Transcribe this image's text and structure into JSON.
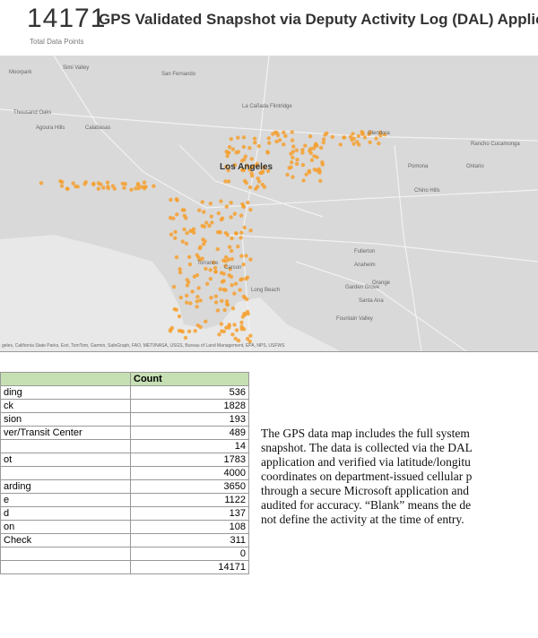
{
  "header": {
    "total": "14171",
    "title": "GPS Validated Snapshot via Deputy Activity Log (DAL) Applic",
    "subtitle": "Total Data Points"
  },
  "map": {
    "labels": [
      "Moorpark",
      "Simi Valley",
      "San Fernando",
      "Thousand Oaks",
      "Agoura Hills",
      "Calabasas",
      "La Cañada Flintridge",
      "Glendora",
      "Los Angeles",
      "Pomona",
      "Ontario",
      "Chino Hills",
      "Torrance",
      "Carson",
      "Long Beach",
      "Anaheim",
      "Fullerton",
      "Orange",
      "Garden Grove",
      "Santa Ana",
      "Rancho Cucamonga",
      "Fountain Valley"
    ],
    "attribution": "geles, California State Parks, Esri, TomTom, Garmin, SafeGraph, FAO, METI/NASA, USGS, Bureau of Land Management, EPA, NPS, USFWS"
  },
  "table": {
    "header": "Count",
    "rows": [
      {
        "label": "ding",
        "count": "536"
      },
      {
        "label": "ck",
        "count": "1828"
      },
      {
        "label": "sion",
        "count": "193"
      },
      {
        "label": "ver/Transit Center",
        "count": "489"
      },
      {
        "count": "14"
      },
      {
        "label": "ot",
        "count": "1783"
      },
      {
        "count": "4000"
      },
      {
        "label": "arding",
        "count": "3650"
      },
      {
        "label": "e",
        "count": "1122"
      },
      {
        "label": "d",
        "count": "137"
      },
      {
        "label": "on",
        "count": "108"
      },
      {
        "label": "Check",
        "count": "311"
      },
      {
        "count": "0"
      },
      {
        "count": "14171"
      }
    ]
  },
  "note": {
    "lines": [
      "The GPS data map includes the full system",
      "snapshot. The data is collected via the DAL",
      "application and verified via latitude/longitu",
      "coordinates on department-issued cellular p",
      "through a secure Microsoft application and",
      "audited for accuracy. “Blank” means the de",
      "not define the activity at the time of entry."
    ]
  }
}
